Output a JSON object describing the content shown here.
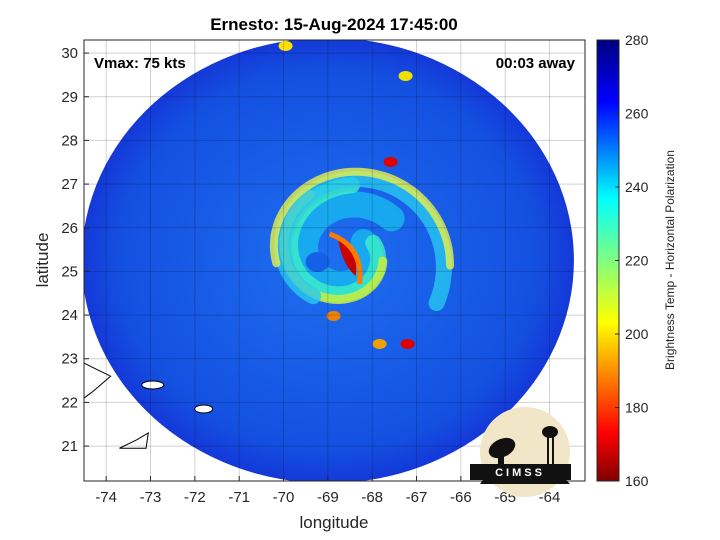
{
  "chart_data": {
    "type": "heatmap",
    "title": "Ernesto: 15-Aug-2024 17:45:00",
    "xlabel": "longitude",
    "ylabel": "latitude",
    "xlim": [
      -74.5,
      -63.2
    ],
    "ylim": [
      20.2,
      30.3
    ],
    "xticks": [
      -74,
      -73,
      -72,
      -71,
      -70,
      -69,
      -68,
      -67,
      -66,
      -65,
      -64
    ],
    "yticks": [
      21,
      22,
      23,
      24,
      25,
      26,
      27,
      28,
      29,
      30
    ],
    "grid": true,
    "annotations": {
      "vmax": "Vmax: 75 kts",
      "time_offset": "00:03 away"
    },
    "storm_center": {
      "lon": -68.6,
      "lat": 25.4
    },
    "swath": {
      "center_lon": -69.0,
      "center_lat": 25.25,
      "radius_lon": 5.55,
      "radius_lat": 5.1
    },
    "colorbar": {
      "label": "Brightness Temp - Horizontal Polarization",
      "range": [
        160,
        280
      ],
      "ticks": [
        160,
        180,
        200,
        220,
        240,
        260,
        280
      ],
      "colormap": "jet"
    }
  },
  "logo": {
    "text": "CIMSS"
  }
}
